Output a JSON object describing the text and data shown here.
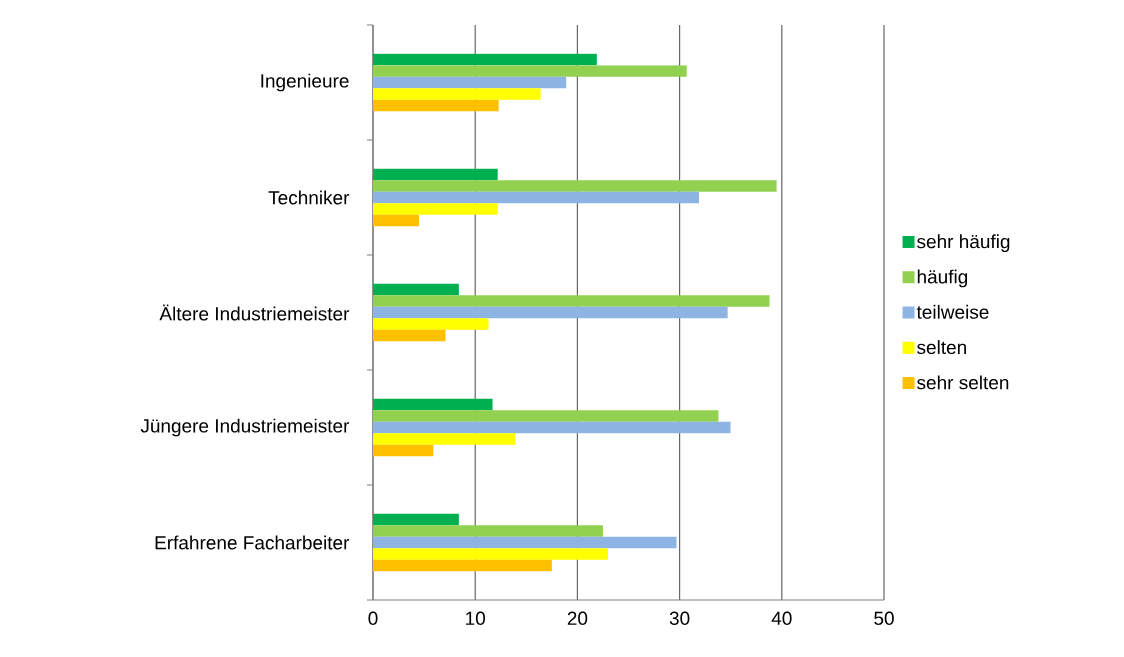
{
  "chart_data": {
    "type": "bar",
    "orientation": "horizontal",
    "categories": [
      "Ingenieure",
      "Techniker",
      "Ältere Industriemeister",
      "Jüngere Industriemeister",
      "Erfahrene Facharbeiter"
    ],
    "series": [
      {
        "name": "sehr häufig",
        "color": "#00b050",
        "values": [
          21.9,
          12.2,
          8.4,
          11.7,
          8.4
        ]
      },
      {
        "name": "häufig",
        "color": "#92d050",
        "values": [
          30.7,
          39.5,
          38.8,
          33.8,
          22.5
        ]
      },
      {
        "name": "teilweise",
        "color": "#8db4e2",
        "values": [
          18.9,
          31.9,
          34.7,
          35.0,
          29.7
        ]
      },
      {
        "name": "selten",
        "color": "#ffff00",
        "values": [
          16.4,
          12.2,
          11.3,
          13.9,
          23.0
        ]
      },
      {
        "name": "sehr selten",
        "color": "#ffc000",
        "values": [
          12.3,
          4.5,
          7.1,
          5.9,
          17.5
        ]
      }
    ],
    "xlim": [
      0,
      50
    ],
    "xticks": [
      0,
      10,
      20,
      30,
      40,
      50
    ],
    "grid": "x",
    "legend": "right"
  }
}
